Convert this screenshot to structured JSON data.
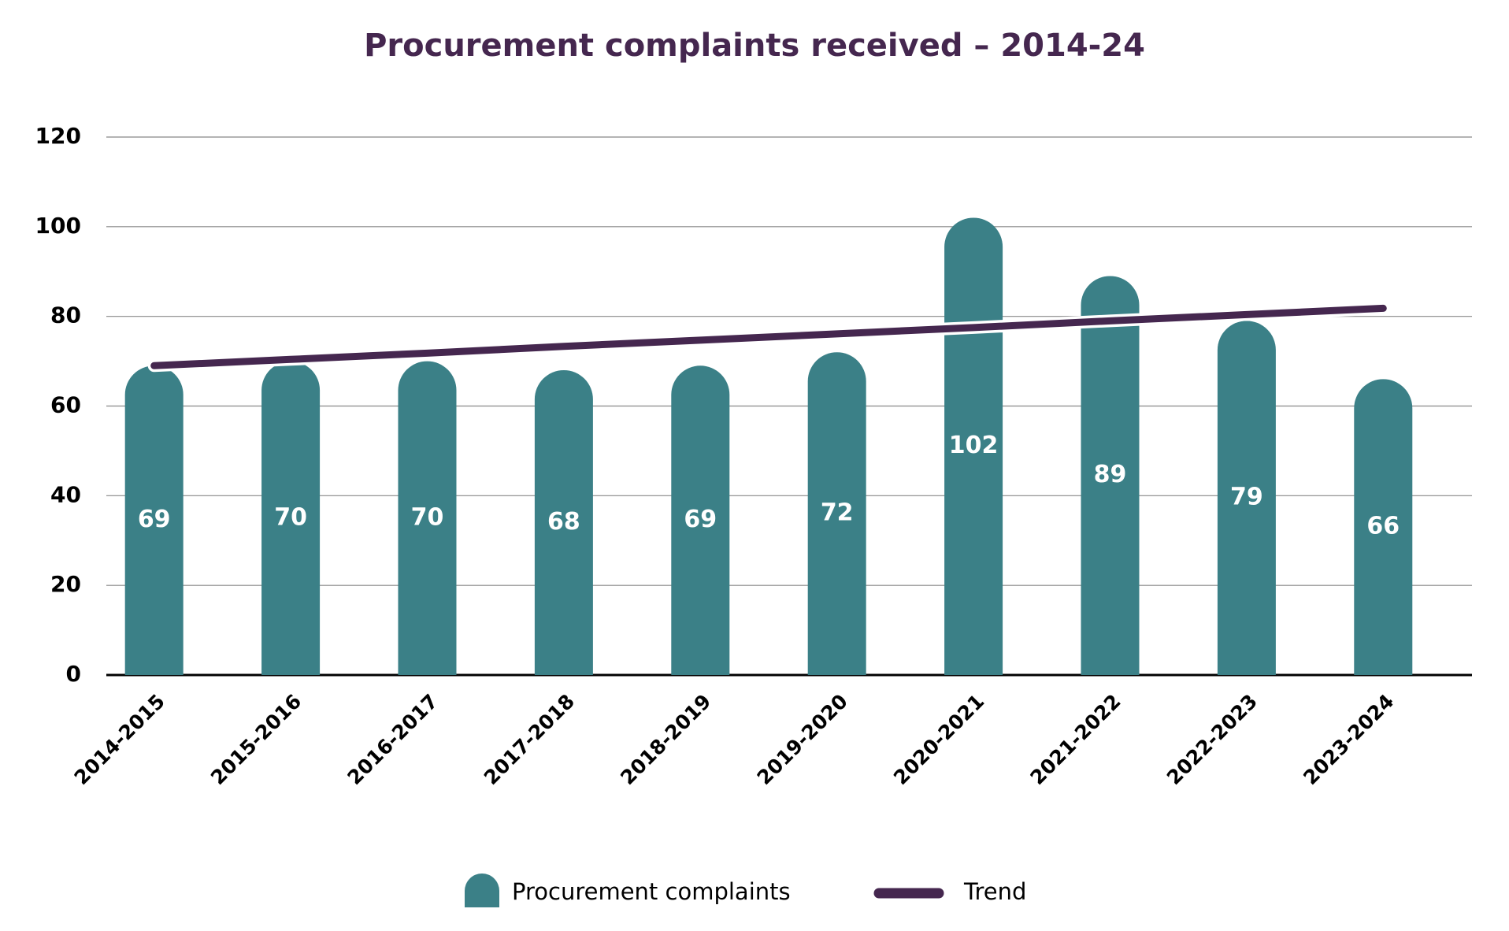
{
  "chart_data": {
    "type": "bar",
    "title": "Procurement complaints received – 2014-24",
    "categories": [
      "2014-2015",
      "2015-2016",
      "2016-2017",
      "2017-2018",
      "2018-2019",
      "2019-2020",
      "2020-2021",
      "2021-2022",
      "2022-2023",
      "2023-2024"
    ],
    "series": [
      {
        "name": "Procurement complaints",
        "type": "bar",
        "color": "#3b8087",
        "values": [
          69,
          70,
          70,
          68,
          69,
          72,
          102,
          89,
          79,
          66
        ]
      },
      {
        "name": "Trend",
        "type": "line",
        "color": "#45274f",
        "values": [
          69.0,
          70.4,
          71.8,
          73.3,
          74.7,
          76.1,
          77.5,
          79.0,
          80.4,
          81.8
        ]
      }
    ],
    "ylim": [
      0,
      120
    ],
    "yticks": [
      0,
      20,
      40,
      60,
      80,
      100,
      120
    ],
    "grid": true,
    "legend": "bottom"
  }
}
